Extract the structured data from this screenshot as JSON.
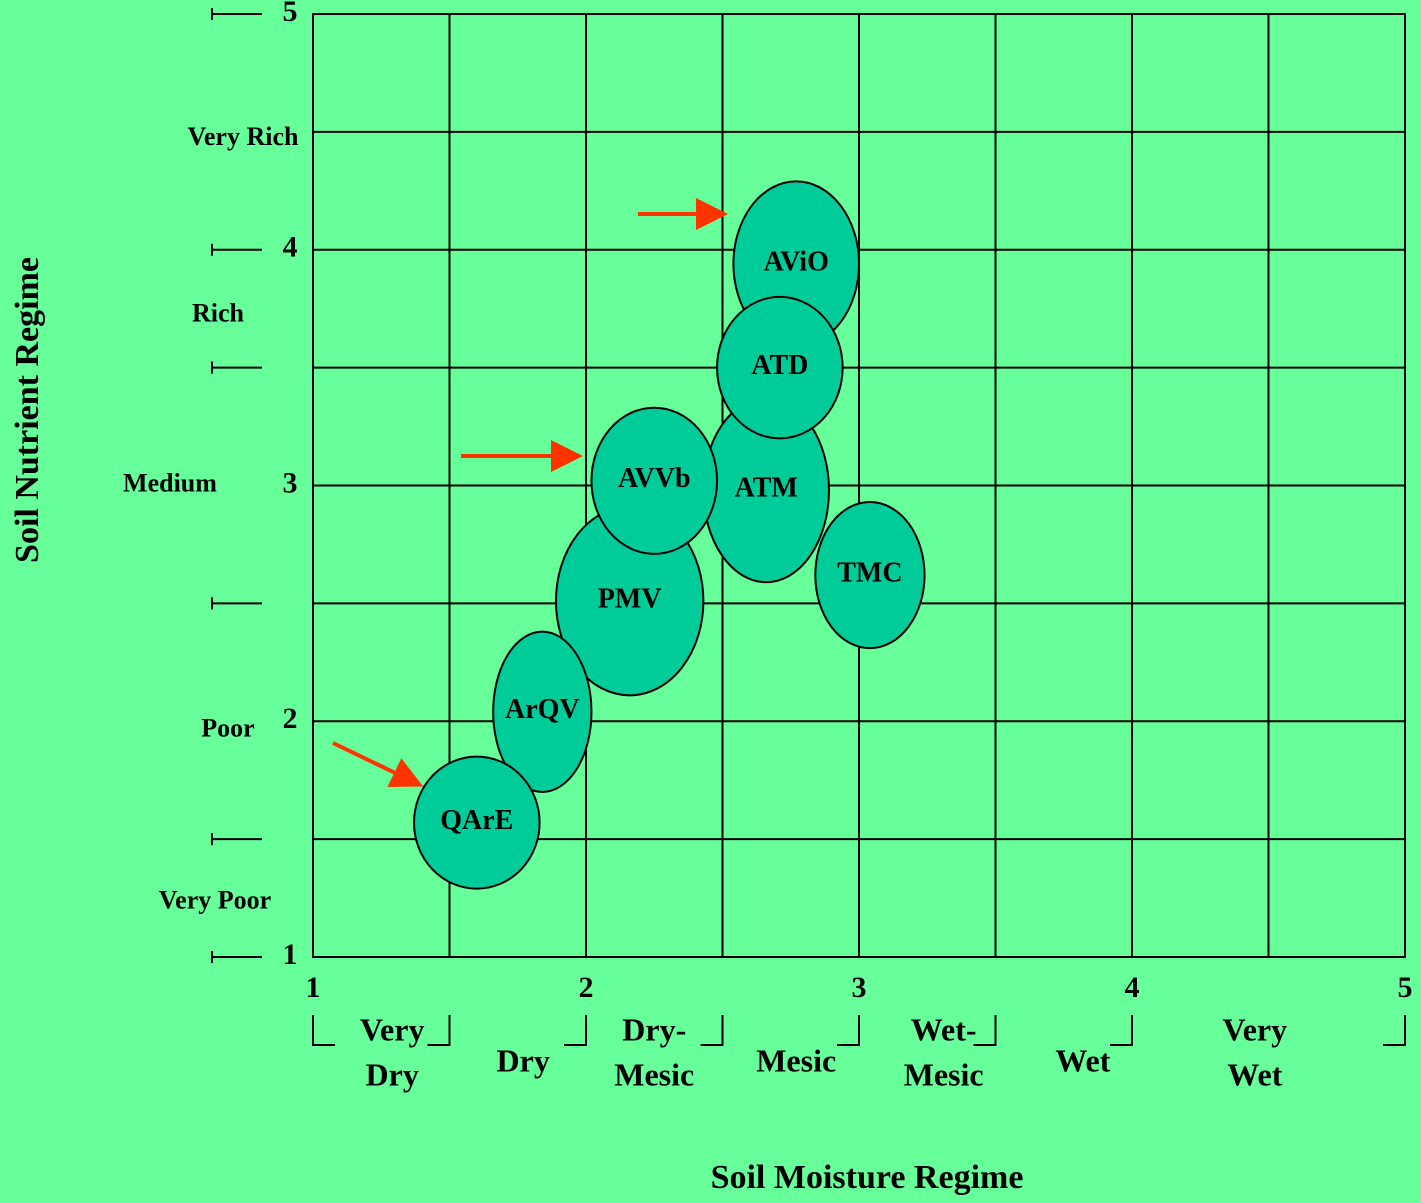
{
  "chart_data": {
    "type": "ellipse",
    "xlabel": "Soil Moisture Regime",
    "ylabel": "Soil Nutrient Regime",
    "xlim": [
      1,
      5
    ],
    "ylim": [
      1,
      5
    ],
    "xticks": [
      1,
      2,
      3,
      4,
      5
    ],
    "yticks": [
      1,
      2,
      3,
      4,
      5
    ],
    "xgrid": [
      1.5,
      2,
      2.5,
      3,
      3.5,
      4,
      4.5
    ],
    "ygrid": [
      1.5,
      2,
      2.5,
      3,
      3.5,
      4,
      4.5
    ],
    "xbrackets": [
      1,
      1.5,
      2,
      2.5,
      3,
      3.5,
      4,
      5
    ],
    "ymarks": [
      1,
      1.5,
      2.5,
      3.5,
      4,
      5
    ],
    "x_classes": [
      {
        "lines": [
          "Very",
          "Dry"
        ],
        "x": 1.29
      },
      {
        "lines": [
          "Dry"
        ],
        "x": 1.77
      },
      {
        "lines": [
          "Dry-",
          "Mesic"
        ],
        "x": 2.25
      },
      {
        "lines": [
          "Mesic"
        ],
        "x": 2.77
      },
      {
        "lines": [
          "Wet-",
          "Mesic"
        ],
        "x": 3.31
      },
      {
        "lines": [
          "Wet"
        ],
        "x": 3.82
      },
      {
        "lines": [
          "Very",
          "Wet"
        ],
        "x": 4.45
      }
    ],
    "y_classes": [
      {
        "label": "Very Rich",
        "y": 4.47
      },
      {
        "label": "Rich",
        "y": 3.72
      },
      {
        "label": "Medium",
        "y": 3.0
      },
      {
        "label": "Poor",
        "y": 1.96
      },
      {
        "label": "Very Poor",
        "y": 1.23
      }
    ],
    "color": "#00cc99",
    "items": [
      {
        "label": "AViO",
        "x": 2.77,
        "y": 3.94,
        "rx": 0.23,
        "ry": 0.35
      },
      {
        "label": "ATM",
        "x": 2.66,
        "y": 2.98,
        "rx": 0.23,
        "ry": 0.39
      },
      {
        "label": "ATD",
        "x": 2.71,
        "y": 3.5,
        "rx": 0.23,
        "ry": 0.3
      },
      {
        "label": "TMC",
        "x": 3.04,
        "y": 2.62,
        "rx": 0.2,
        "ry": 0.31
      },
      {
        "label": "PMV",
        "x": 2.16,
        "y": 2.51,
        "rx": 0.27,
        "ry": 0.4
      },
      {
        "label": "AVVb",
        "x": 2.25,
        "y": 3.02,
        "rx": 0.23,
        "ry": 0.31
      },
      {
        "label": "ArQV",
        "x": 1.84,
        "y": 2.04,
        "rx": 0.18,
        "ry": 0.34
      },
      {
        "label": "QArE",
        "x": 1.6,
        "y": 1.57,
        "rx": 0.23,
        "ry": 0.28
      }
    ]
  }
}
